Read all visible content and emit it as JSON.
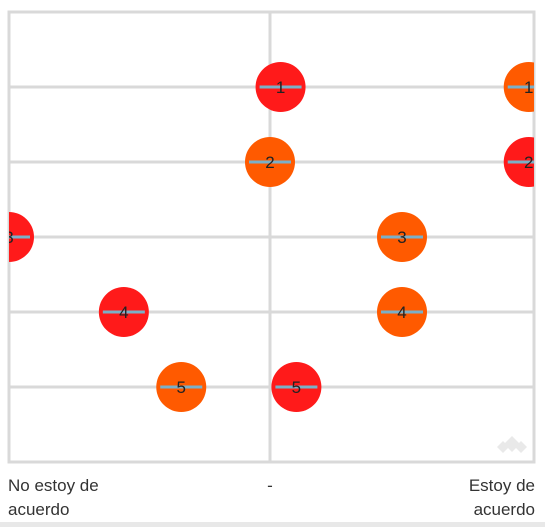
{
  "chart_data": {
    "type": "scatter",
    "x_labels": [
      "No estoy de acuerdo",
      "-",
      "Estoy de acuerdo"
    ],
    "xlim": [
      -5,
      5
    ],
    "rows": [
      1,
      2,
      3,
      4,
      5
    ],
    "grid": true,
    "colors": {
      "red": "#ff1a1a",
      "orange": "#ff5a00",
      "grid": "#d9d9d9",
      "connector": "#7ab0c8"
    },
    "points": [
      {
        "row": 1,
        "x": 0.2,
        "label": "1",
        "color": "red"
      },
      {
        "row": 1,
        "x": 4.9,
        "label": "1",
        "color": "orange"
      },
      {
        "row": 2,
        "x": 0.0,
        "label": "2",
        "color": "orange"
      },
      {
        "row": 2,
        "x": 4.9,
        "label": "2",
        "color": "red"
      },
      {
        "row": 3,
        "x": -5.0,
        "label": "3",
        "color": "red"
      },
      {
        "row": 3,
        "x": 2.5,
        "label": "3",
        "color": "orange"
      },
      {
        "row": 4,
        "x": -2.8,
        "label": "4",
        "color": "red"
      },
      {
        "row": 4,
        "x": 2.5,
        "label": "4",
        "color": "orange"
      },
      {
        "row": 5,
        "x": -1.7,
        "label": "5",
        "color": "orange"
      },
      {
        "row": 5,
        "x": 0.5,
        "label": "5",
        "color": "red"
      }
    ]
  },
  "axis": {
    "left_label": "No estoy de acuerdo",
    "middle_label": "-",
    "right_label": "Estoy de acuerdo"
  }
}
